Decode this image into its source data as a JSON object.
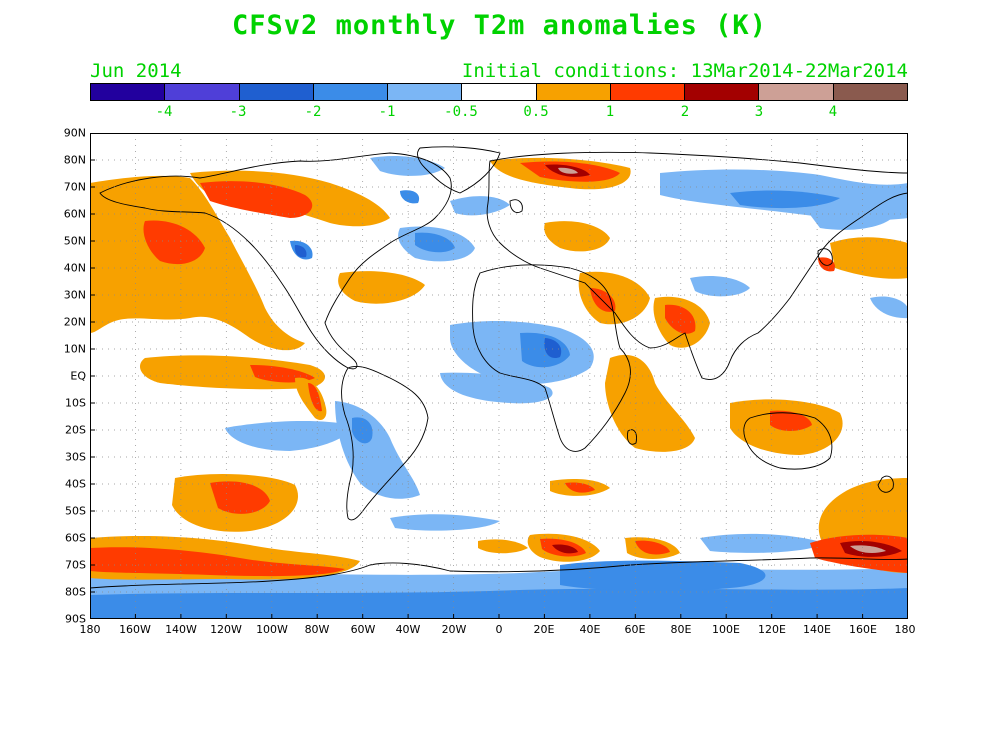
{
  "title": "CFSv2 monthly T2m anomalies (K)",
  "month": "Jun 2014",
  "initial_conditions": "Initial conditions: 13Mar2014-22Mar2014",
  "colorbar": {
    "colors": [
      "#22009e",
      "#4f3fd8",
      "#1f5fd0",
      "#3b8ce8",
      "#7bb6f5",
      "#ffffff",
      "#f7a100",
      "#ff3b00",
      "#a30000",
      "#cda096",
      "#8a5a4e"
    ],
    "labels": [
      "-4",
      "-3",
      "-2",
      "-1",
      "-0.5",
      "0.5",
      "1",
      "2",
      "3",
      "4"
    ]
  },
  "lat_labels": [
    "90N",
    "80N",
    "70N",
    "60N",
    "50N",
    "40N",
    "30N",
    "20N",
    "10N",
    "EQ",
    "10S",
    "20S",
    "30S",
    "40S",
    "50S",
    "60S",
    "70S",
    "80S",
    "90S"
  ],
  "lon_labels": [
    "180",
    "160W",
    "140W",
    "120W",
    "100W",
    "80W",
    "60W",
    "40W",
    "20W",
    "0",
    "20E",
    "40E",
    "60E",
    "80E",
    "100E",
    "120E",
    "140E",
    "160E",
    "180"
  ]
}
